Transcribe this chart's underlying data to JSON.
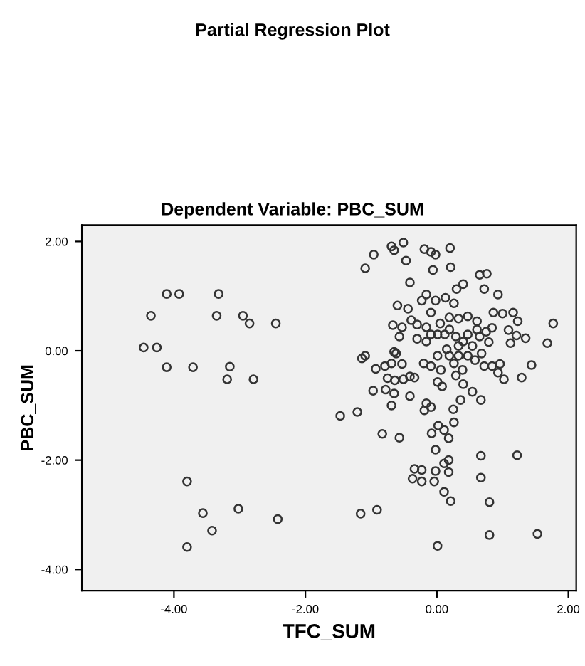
{
  "chart_data": {
    "type": "scatter",
    "title": "Partial Regression Plot",
    "subtitle": "Dependent Variable: PBC_SUM",
    "xlabel": "TFC_SUM",
    "ylabel": "PBC_SUM",
    "xlim": [
      -5.4,
      2.12
    ],
    "ylim": [
      -4.39,
      2.3
    ],
    "xticks": [
      {
        "value": -4,
        "label": "-4.00"
      },
      {
        "value": -2,
        "label": "-2.00"
      },
      {
        "value": 0,
        "label": "0.00"
      },
      {
        "value": 2,
        "label": "2.00"
      }
    ],
    "yticks": [
      {
        "value": -4,
        "label": "-4.00"
      },
      {
        "value": -2,
        "label": "-2.00"
      },
      {
        "value": 0,
        "label": "0.00"
      },
      {
        "value": 2,
        "label": "2.00"
      }
    ],
    "marker": "circle",
    "grid": false,
    "series": [
      {
        "color": "#333333",
        "x": [
          -4.11,
          -3.92,
          -3.32,
          -4.35,
          -3.35,
          -2.95,
          -2.85,
          -2.45,
          -4.46,
          -4.26,
          -4.11,
          -3.71,
          -3.15,
          -3.19,
          -2.79,
          -3.8,
          -3.56,
          -3.02,
          -2.42,
          -3.42,
          -3.8,
          -1.47,
          -1.21,
          -0.83,
          -0.57,
          -0.08,
          0.02,
          0.11,
          0.18,
          0.26,
          -0.02,
          0.67,
          1.22,
          -0.34,
          -0.23,
          -0.37,
          -0.23,
          -0.02,
          -0.04,
          0.11,
          0.18,
          0.18,
          0.11,
          0.21,
          0.67,
          0.8,
          -1.16,
          -0.91,
          0.8,
          1.53,
          0.01,
          -0.19,
          0.25,
          -0.09,
          -1.09,
          -0.96,
          -0.69,
          -0.65,
          -0.51,
          -0.47,
          -0.19,
          -0.09,
          -0.02,
          0.2,
          -0.06,
          0.21,
          -0.41,
          0.65,
          0.76,
          0.72,
          0.3,
          0.4,
          0.93,
          -0.16,
          -0.23,
          -0.02,
          0.13,
          0.26,
          -0.6,
          -0.44,
          -0.39,
          -0.67,
          -0.53,
          -0.57,
          -0.65,
          -1.09,
          -1.14,
          -0.93,
          -0.79,
          -0.69,
          -0.62,
          -0.53,
          -0.75,
          -0.64,
          -0.51,
          -0.41,
          -0.34,
          -0.97,
          -0.78,
          -0.65,
          -0.41,
          -0.69,
          -0.16,
          -0.16,
          -0.09,
          0.05,
          0.19,
          0.33,
          0.47,
          0.61,
          0.84,
          1.0,
          1.16,
          1.23,
          1.09,
          1.21,
          1.35,
          1.12,
          1.68,
          1.77,
          1.44,
          1.29,
          1.02,
          0.93,
          0.84,
          0.96,
          0.72,
          0.68,
          0.54,
          0.4,
          0.29,
          0.12,
          0.47,
          0.65,
          0.79,
          0.33,
          0.15,
          0.01,
          0.01,
          -0.09,
          -0.2,
          0.06,
          0.01,
          0.26,
          0.33,
          0.39,
          0.29,
          0.4,
          0.54,
          0.67,
          0.36,
          0.08,
          -0.16,
          0.61,
          0.75,
          0.86,
          0.19,
          -0.09,
          -0.3,
          0.47,
          0.58,
          0.19,
          -0.3
        ],
        "values": [
          1.04,
          1.04,
          1.04,
          0.64,
          0.64,
          0.64,
          0.5,
          0.5,
          0.06,
          0.06,
          -0.3,
          -0.3,
          -0.29,
          -0.52,
          -0.52,
          -2.39,
          -2.97,
          -2.89,
          -3.08,
          -3.29,
          -3.59,
          -1.19,
          -1.12,
          -1.52,
          -1.59,
          -1.51,
          -1.37,
          -1.45,
          -1.6,
          -1.31,
          -1.81,
          -1.92,
          -1.91,
          -2.16,
          -2.18,
          -2.34,
          -2.39,
          -2.2,
          -2.39,
          -2.06,
          -2.0,
          -2.22,
          -2.58,
          -2.75,
          -2.32,
          -2.77,
          -2.98,
          -2.91,
          -3.37,
          -3.35,
          -3.57,
          -1.09,
          -1.07,
          -1.03,
          1.51,
          1.76,
          1.91,
          1.84,
          1.98,
          1.65,
          1.86,
          1.81,
          1.76,
          1.88,
          1.48,
          1.53,
          1.25,
          1.39,
          1.41,
          1.13,
          1.13,
          1.22,
          1.03,
          1.03,
          0.92,
          0.92,
          0.97,
          0.87,
          0.83,
          0.77,
          0.56,
          0.47,
          0.43,
          0.26,
          -0.02,
          -0.09,
          -0.14,
          -0.33,
          -0.28,
          -0.23,
          -0.05,
          -0.24,
          -0.5,
          -0.54,
          -0.52,
          -0.47,
          -0.49,
          -0.73,
          -0.71,
          -0.78,
          -0.83,
          -1.0,
          0.17,
          0.43,
          0.7,
          0.5,
          0.61,
          0.59,
          0.63,
          0.54,
          0.42,
          0.68,
          0.7,
          0.54,
          0.38,
          0.28,
          0.23,
          0.14,
          0.14,
          0.5,
          -0.26,
          -0.49,
          -0.52,
          -0.4,
          -0.28,
          -0.24,
          -0.28,
          -0.05,
          0.09,
          0.17,
          0.26,
          0.3,
          0.3,
          0.26,
          0.16,
          0.09,
          0.03,
          0.3,
          -0.09,
          -0.28,
          -0.23,
          -0.35,
          -0.57,
          -0.23,
          -0.09,
          -0.35,
          -0.45,
          -0.61,
          -0.75,
          -0.9,
          -0.9,
          -0.65,
          -0.96,
          0.39,
          0.35,
          0.7,
          0.39,
          0.3,
          0.22,
          -0.09,
          -0.17,
          -0.09,
          0.48
        ]
      }
    ]
  }
}
